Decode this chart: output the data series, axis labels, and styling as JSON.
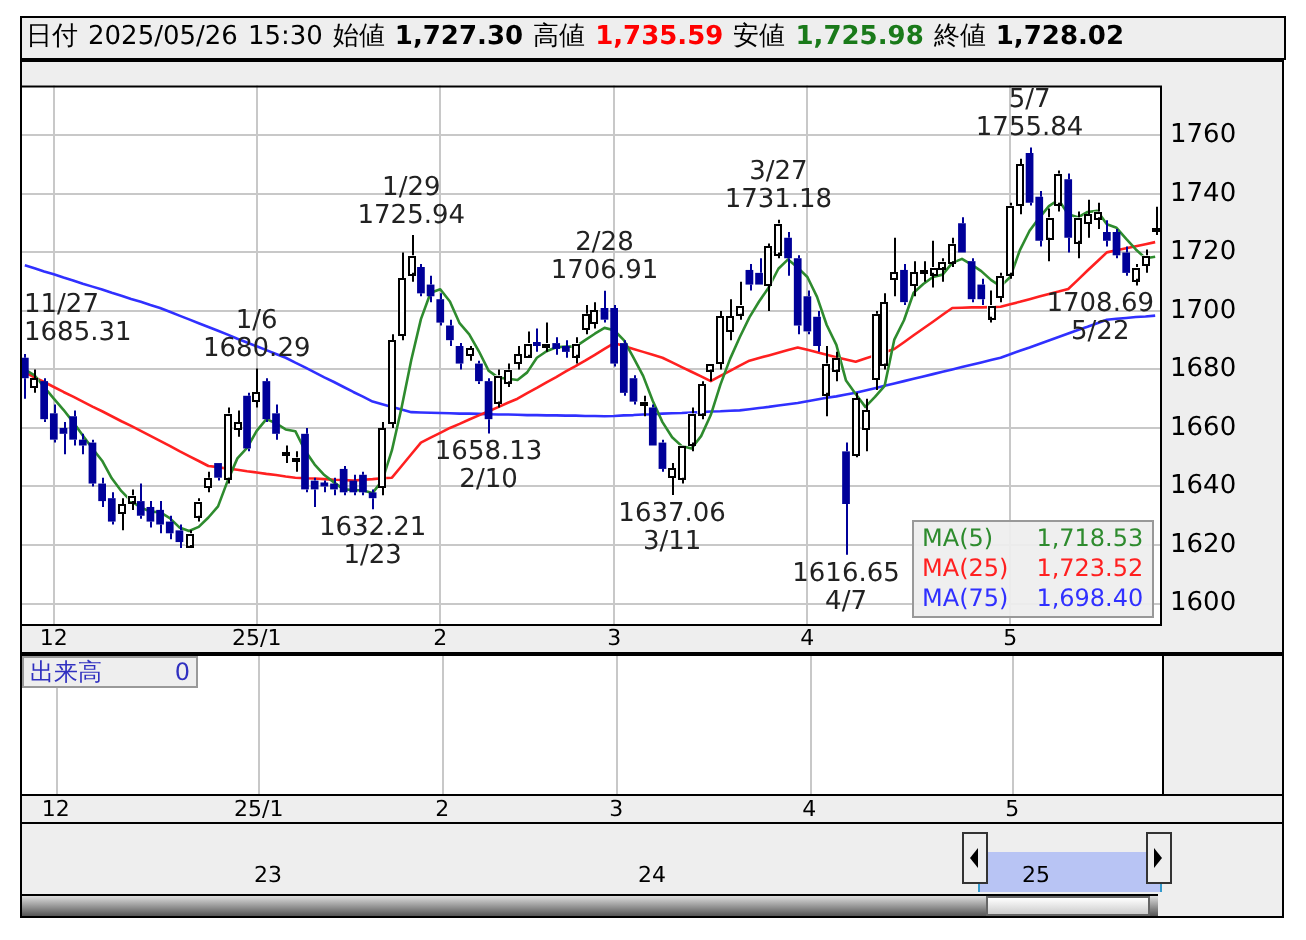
{
  "chart_data": {
    "type": "candlestick",
    "title": "日付 2025/05/26 15:30 始値 1,727.30 高値 1,735.59 安値 1,725.98 終値 1,728.02",
    "categories": [
      null,
      null,
      null,
      "12",
      null,
      null,
      null,
      null,
      null,
      null,
      null,
      null,
      null,
      null,
      null,
      null,
      null,
      null,
      null,
      null,
      null,
      null,
      null,
      null,
      "25/1",
      null,
      null,
      null,
      null,
      null,
      null,
      null,
      null,
      null,
      null,
      null,
      null,
      null,
      null,
      null,
      null,
      null,
      null,
      "2",
      null,
      null,
      null,
      null,
      null,
      null,
      null,
      null,
      null,
      null,
      null,
      null,
      null,
      null,
      null,
      null,
      null,
      "3",
      null,
      null,
      null,
      null,
      null,
      null,
      null,
      null,
      null,
      null,
      null,
      null,
      null,
      null,
      null,
      null,
      null,
      null,
      null,
      "4",
      null,
      null,
      null,
      null,
      null,
      null,
      null,
      null,
      null,
      null,
      null,
      null,
      null,
      null,
      null,
      null,
      null,
      null,
      null,
      null,
      "5",
      null,
      null,
      null,
      null,
      null,
      null,
      null,
      null,
      null,
      null,
      null,
      null,
      null,
      null,
      null
    ],
    "ohlc": [
      [
        1684,
        1685.31,
        1670,
        1677
      ],
      [
        1674,
        1680,
        1672,
        1677
      ],
      [
        1676,
        1677,
        1662,
        1663
      ],
      [
        1665,
        1668,
        1655,
        1656
      ],
      [
        1660,
        1662,
        1651,
        1658
      ],
      [
        1664,
        1666,
        1654,
        1656
      ],
      [
        1656,
        1658,
        1651,
        1654
      ],
      [
        1655,
        1656,
        1640,
        1641
      ],
      [
        1641,
        1643,
        1633,
        1635
      ],
      [
        1636,
        1638,
        1627,
        1628
      ],
      [
        1631,
        1636,
        1625,
        1634
      ],
      [
        1635,
        1639,
        1632,
        1637
      ],
      [
        1635,
        1641,
        1629,
        1630
      ],
      [
        1633,
        1635,
        1626,
        1628
      ],
      [
        1632,
        1635,
        1624,
        1627
      ],
      [
        1628,
        1630,
        1622,
        1624
      ],
      [
        1625,
        1627,
        1619,
        1621
      ],
      [
        1620,
        1625,
        1619,
        1624
      ],
      [
        1630,
        1636,
        1628,
        1635
      ],
      [
        1640,
        1645,
        1638,
        1643
      ],
      [
        1648,
        1648,
        1642,
        1643
      ],
      [
        1643,
        1667,
        1641,
        1665
      ],
      [
        1660,
        1666,
        1657,
        1662
      ],
      [
        1671,
        1672,
        1652,
        1653
      ],
      [
        1669,
        1680.29,
        1667,
        1672
      ],
      [
        1676,
        1677,
        1662,
        1663
      ],
      [
        1665,
        1668,
        1656,
        1658
      ],
      [
        1651,
        1654,
        1648,
        1651.5
      ],
      [
        1649,
        1652,
        1645,
        1650
      ],
      [
        1658,
        1660,
        1638,
        1639
      ],
      [
        1642,
        1643,
        1633,
        1639
      ],
      [
        1641,
        1642,
        1638,
        1640
      ],
      [
        1641,
        1643,
        1637,
        1639
      ],
      [
        1646,
        1647,
        1637,
        1638
      ],
      [
        1642,
        1644,
        1637,
        1638
      ],
      [
        1644,
        1645,
        1637,
        1638
      ],
      [
        1638,
        1639,
        1632.21,
        1636
      ],
      [
        1640,
        1662,
        1637,
        1660
      ],
      [
        1662,
        1692,
        1660,
        1690
      ],
      [
        1692,
        1720,
        1690,
        1711
      ],
      [
        1713,
        1725.94,
        1710,
        1719
      ],
      [
        1715,
        1716,
        1705,
        1706
      ],
      [
        1709,
        1712,
        1703,
        1705
      ],
      [
        1704,
        1706,
        1695,
        1696
      ],
      [
        1695,
        1697,
        1688,
        1690
      ],
      [
        1688,
        1689,
        1680,
        1682
      ],
      [
        1685,
        1688,
        1683,
        1687
      ],
      [
        1682,
        1683,
        1675,
        1676
      ],
      [
        1676,
        1677,
        1658.13,
        1663
      ],
      [
        1669,
        1680,
        1667,
        1678
      ],
      [
        1676,
        1682,
        1674,
        1680
      ],
      [
        1682,
        1688,
        1680,
        1685
      ],
      [
        1685,
        1693,
        1684,
        1689
      ],
      [
        1689,
        1694,
        1686,
        1688
      ],
      [
        1688,
        1696,
        1686,
        1689
      ],
      [
        1689,
        1691,
        1685,
        1687
      ],
      [
        1688,
        1690,
        1684,
        1686
      ],
      [
        1685,
        1691,
        1682,
        1689
      ],
      [
        1694,
        1702,
        1692,
        1699
      ],
      [
        1696,
        1703,
        1694,
        1700
      ],
      [
        1701,
        1706.91,
        1696,
        1697
      ],
      [
        1701,
        1702,
        1681,
        1682
      ],
      [
        1689,
        1690,
        1671,
        1672
      ],
      [
        1677,
        1678,
        1668,
        1669
      ],
      [
        1668,
        1671,
        1664,
        1669
      ],
      [
        1667,
        1668,
        1654,
        1654
      ],
      [
        1655,
        1656,
        1645,
        1646
      ],
      [
        1643,
        1648,
        1637.06,
        1646
      ],
      [
        1643,
        1654,
        1641,
        1654
      ],
      [
        1655,
        1667,
        1652,
        1665
      ],
      [
        1665,
        1676,
        1663,
        1675
      ],
      [
        1680,
        1682,
        1676,
        1682
      ],
      [
        1682,
        1700,
        1680,
        1698
      ],
      [
        1693,
        1704,
        1690,
        1698
      ],
      [
        1699,
        1710,
        1697,
        1702
      ],
      [
        1714,
        1716,
        1707,
        1709
      ],
      [
        1713,
        1718,
        1709,
        1709
      ],
      [
        1709,
        1723,
        1700,
        1722
      ],
      [
        1720,
        1731.18,
        1718,
        1730
      ],
      [
        1725,
        1727,
        1712,
        1718
      ],
      [
        1718,
        1719,
        1692,
        1695
      ],
      [
        1705,
        1707,
        1692,
        1693
      ],
      [
        1698,
        1700,
        1686,
        1688
      ],
      [
        1672,
        1688,
        1664,
        1682
      ],
      [
        1680,
        1686,
        1676,
        1684
      ],
      [
        1652,
        1655,
        1616.65,
        1634
      ],
      [
        1651,
        1672,
        1650,
        1670
      ],
      [
        1660,
        1670,
        1652,
        1666
      ],
      [
        1677,
        1700,
        1673,
        1699
      ],
      [
        1682,
        1706,
        1680,
        1703
      ],
      [
        1711,
        1725,
        1705,
        1713
      ],
      [
        1714,
        1716,
        1702,
        1703
      ],
      [
        1709,
        1717,
        1705,
        1713
      ],
      [
        1713,
        1717,
        1710,
        1714
      ],
      [
        1713,
        1724,
        1708,
        1715
      ],
      [
        1715,
        1718,
        1710,
        1717
      ],
      [
        1717,
        1725,
        1715,
        1723
      ],
      [
        1730,
        1732,
        1720,
        1720
      ],
      [
        1717,
        1718,
        1703,
        1704
      ],
      [
        1709,
        1711,
        1702,
        1704
      ],
      [
        1698,
        1707,
        1696,
        1702
      ],
      [
        1705,
        1713,
        1703,
        1712
      ],
      [
        1713,
        1737,
        1711,
        1736
      ],
      [
        1736,
        1752,
        1733,
        1750
      ],
      [
        1754,
        1755.84,
        1736,
        1737
      ],
      [
        1739,
        1741,
        1722,
        1724
      ],
      [
        1725,
        1735,
        1717,
        1732
      ],
      [
        1737,
        1748,
        1734,
        1747
      ],
      [
        1745,
        1747,
        1720,
        1725
      ],
      [
        1724,
        1734,
        1718,
        1732
      ],
      [
        1730,
        1738,
        1725,
        1733
      ],
      [
        1732,
        1737,
        1728,
        1734
      ],
      [
        1727,
        1731,
        1722,
        1724
      ],
      [
        1727,
        1728,
        1718,
        1719
      ],
      [
        1720,
        1722,
        1712,
        1713
      ],
      [
        1711,
        1716,
        1708.69,
        1715
      ],
      [
        1716,
        1721,
        1713,
        1719
      ],
      [
        1727.3,
        1735.59,
        1725.98,
        1728.02
      ]
    ],
    "colors": [
      "#000099",
      "#ffffff",
      "#000099",
      "#000099",
      "#000099",
      "#000099",
      "#000099",
      "#000099",
      "#000099",
      "#000099",
      "#ffffff",
      "#ffffff",
      "#000099",
      "#000099",
      "#000099",
      "#000099",
      "#000099",
      "#ffffff",
      "#ffffff",
      "#ffffff",
      "#000099",
      "#ffffff",
      "#ffffff",
      "#000099",
      "#ffffff",
      "#000099",
      "#000099",
      "#ffffff",
      "#ffffff",
      "#000099",
      "#000099",
      "#000099",
      "#000099",
      "#000099",
      "#000099",
      "#000099",
      "#000099",
      "#ffffff",
      "#ffffff",
      "#ffffff",
      "#ffffff",
      "#000099",
      "#000099",
      "#000099",
      "#000099",
      "#000099",
      "#ffffff",
      "#000099",
      "#000099",
      "#ffffff",
      "#ffffff",
      "#ffffff",
      "#ffffff",
      "#000099",
      "#ffffff",
      "#000099",
      "#000099",
      "#ffffff",
      "#ffffff",
      "#ffffff",
      "#000099",
      "#000099",
      "#000099",
      "#000099",
      "#ffffff",
      "#000099",
      "#000099",
      "#ffffff",
      "#ffffff",
      "#ffffff",
      "#ffffff",
      "#ffffff",
      "#ffffff",
      "#ffffff",
      "#ffffff",
      "#000099",
      "#000099",
      "#ffffff",
      "#ffffff",
      "#000099",
      "#000099",
      "#000099",
      "#000099",
      "#ffffff",
      "#ffffff",
      "#000099",
      "#ffffff",
      "#ffffff",
      "#ffffff",
      "#ffffff",
      "#ffffff",
      "#000099",
      "#ffffff",
      "#ffffff",
      "#ffffff",
      "#ffffff",
      "#ffffff",
      "#000099",
      "#000099",
      "#000099",
      "#ffffff",
      "#ffffff",
      "#ffffff",
      "#ffffff",
      "#000099",
      "#000099",
      "#ffffff",
      "#ffffff",
      "#000099",
      "#ffffff",
      "#ffffff",
      "#ffffff",
      "#000099",
      "#000099",
      "#000099",
      "#ffffff",
      "#ffffff",
      "#ffffff"
    ],
    "series": [
      {
        "type": "line",
        "name": "MA(5) 1,718.53",
        "color": "#2e8b2e",
        "values": [
          1680,
          1678,
          1674,
          1670,
          1666.2,
          1662,
          1657.4,
          1653,
          1648.8,
          1642.8,
          1638.4,
          1635,
          1632.8,
          1631.4,
          1631.2,
          1629.2,
          1626,
          1624.8,
          1626.2,
          1629.4,
          1633.2,
          1642,
          1649.6,
          1653.2,
          1659,
          1663,
          1661.6,
          1659.5,
          1658.9,
          1652.3,
          1647.5,
          1643.9,
          1641.4,
          1639,
          1638.8,
          1638.6,
          1637.8,
          1642,
          1652.4,
          1667,
          1683.2,
          1697.2,
          1706.2,
          1707.4,
          1703.2,
          1695.8,
          1692,
          1686.2,
          1679.6,
          1677.2,
          1676.8,
          1676.4,
          1679,
          1684,
          1686.2,
          1687.6,
          1687.8,
          1687.8,
          1690,
          1692.2,
          1694.2,
          1693.4,
          1690,
          1684,
          1677.8,
          1669.2,
          1662,
          1656.8,
          1653.8,
          1653,
          1657.2,
          1664.4,
          1674.8,
          1683.6,
          1691,
          1697.8,
          1703.2,
          1708,
          1714.4,
          1717.6,
          1714.8,
          1711.6,
          1704.8,
          1695.2,
          1688.4,
          1676.2,
          1671.6,
          1667.2,
          1670.6,
          1674.4,
          1690.2,
          1696.8,
          1706.2,
          1709.2,
          1711.6,
          1712.4,
          1716.4,
          1717.8,
          1715.8,
          1713.6,
          1710.6,
          1708.4,
          1711.6,
          1720.8,
          1727.4,
          1731.8,
          1735.8,
          1738,
          1733,
          1732,
          1733.8,
          1734.2,
          1729.6,
          1728.4,
          1724.6,
          1721,
          1718,
          1718.5
        ]
      },
      {
        "type": "line",
        "name": "MA(25) 1,723.52",
        "color": "#ff2020",
        "values": [
          1679.0,
          1677.3,
          1675.7,
          1674.0,
          1672.3,
          1670.7,
          1669.0,
          1667.3,
          1665.7,
          1664.0,
          1662.3,
          1660.7,
          1659.0,
          1657.3,
          1655.6,
          1653.9,
          1652.1,
          1650.4,
          1648.7,
          1647.0,
          1646.6,
          1646.1,
          1645.7,
          1645.2,
          1644.8,
          1644.3,
          1643.9,
          1643.4,
          1643.0,
          1642.8,
          1642.7,
          1642.5,
          1642.3,
          1642.2,
          1642.0,
          1642.3,
          1642.5,
          1642.8,
          1643.0,
          1647.0,
          1651.0,
          1655.0,
          1656.7,
          1658.3,
          1660.0,
          1661.4,
          1662.9,
          1664.3,
          1665.7,
          1667.1,
          1668.6,
          1670.0,
          1671.9,
          1673.7,
          1675.6,
          1677.4,
          1679.3,
          1681.1,
          1683.0,
          1685.0,
          1687.0,
          1689.0,
          1688.0,
          1687.0,
          1686.0,
          1685.0,
          1684.0,
          1682.4,
          1680.8,
          1679.2,
          1677.6,
          1676.0,
          1677.8,
          1679.5,
          1681.3,
          1683.0,
          1683.9,
          1684.8,
          1685.7,
          1686.6,
          1687.5,
          1686.7,
          1685.9,
          1685.0,
          1684.2,
          1683.4,
          1682.6,
          1683.7,
          1684.8,
          1685.9,
          1687.0,
          1689.3,
          1691.7,
          1694.0,
          1696.3,
          1698.7,
          1701.0,
          1701.1,
          1701.2,
          1701.2,
          1701.3,
          1701.4,
          1702.3,
          1703.1,
          1704.0,
          1704.9,
          1705.8,
          1706.6,
          1707.5,
          1710.6,
          1713.8,
          1716.9,
          1720.0,
          1720.7,
          1721.4,
          1722.1,
          1722.8,
          1723.5
        ]
      },
      {
        "type": "line",
        "name": "MA(75) 1,698.40",
        "color": "#3030ff",
        "values": [
          1715.6,
          1714.6,
          1713.5,
          1712.5,
          1711.4,
          1710.4,
          1709.3,
          1708.3,
          1707.3,
          1706.2,
          1705.2,
          1704.1,
          1703.1,
          1702.0,
          1701.0,
          1699.7,
          1698.4,
          1697.1,
          1695.8,
          1694.5,
          1693.2,
          1691.9,
          1690.5,
          1689.2,
          1687.9,
          1686.6,
          1685.3,
          1684.0,
          1682.3,
          1680.7,
          1679.0,
          1677.3,
          1675.7,
          1674.0,
          1672.3,
          1670.7,
          1669.0,
          1668.1,
          1667.2,
          1666.3,
          1665.4,
          1665.3,
          1665.2,
          1665.1,
          1665.0,
          1664.9,
          1664.9,
          1664.8,
          1664.7,
          1664.6,
          1664.6,
          1664.5,
          1664.4,
          1664.4,
          1664.3,
          1664.3,
          1664.2,
          1664.2,
          1664.1,
          1664.1,
          1664.0,
          1664.1,
          1664.3,
          1664.4,
          1664.6,
          1664.7,
          1664.9,
          1665.0,
          1665.1,
          1665.3,
          1665.4,
          1665.6,
          1665.7,
          1665.9,
          1666.0,
          1666.4,
          1666.8,
          1667.2,
          1667.7,
          1668.1,
          1668.5,
          1669.1,
          1669.7,
          1670.3,
          1670.8,
          1671.4,
          1672.0,
          1672.8,
          1673.6,
          1674.4,
          1675.2,
          1676.0,
          1676.8,
          1677.6,
          1678.4,
          1679.2,
          1680.0,
          1680.8,
          1681.6,
          1682.4,
          1683.2,
          1684.0,
          1685.2,
          1686.4,
          1687.5,
          1688.7,
          1689.9,
          1691.1,
          1692.3,
          1693.5,
          1694.6,
          1695.8,
          1697.0,
          1697.3,
          1697.6,
          1697.9,
          1698.1,
          1698.4
        ]
      }
    ],
    "ylim": [
      1593,
      1777
    ],
    "yticks": [
      1600,
      1620,
      1640,
      1660,
      1680,
      1700,
      1720,
      1740,
      1760
    ],
    "grid": true,
    "legend": "bottom right",
    "marker": "none",
    "annotations": [
      "11/27\n1685.31",
      {
        "text": "1/6\n1680.29",
        "y": 1680.29
      },
      {
        "text": "1/29\n1725.94",
        "y": 1725.94
      },
      {
        "text": "2/28\n1706.91",
        "y": 1706.91
      },
      {
        "text": "3/27\n1731.18",
        "y": 1731.18
      },
      {
        "text": "5/7\n1755.84",
        "y": 1755.84
      },
      {
        "text": "1632.21\n1/23",
        "y": 1632.21
      },
      {
        "text": "1658.13\n2/10",
        "y": 1658.13
      },
      {
        "text": "1637.06\n3/11",
        "y": 1637.06
      },
      {
        "text": "1616.65\n4/7",
        "y": 1616.65
      },
      "1708.69\n5/22",
      "出来高 0",
      "23",
      "24",
      "25"
    ]
  }
}
